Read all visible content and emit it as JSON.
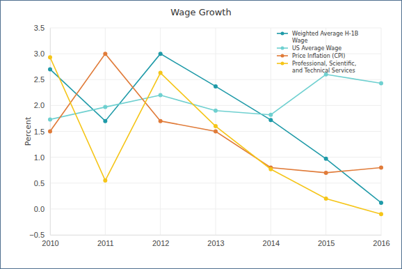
{
  "chart_data": {
    "type": "line",
    "title": "Wage Growth",
    "y_label": "Percent",
    "x": [
      2010,
      2011,
      2012,
      2013,
      2014,
      2015,
      2016
    ],
    "xlim": [
      2010,
      2016
    ],
    "xticks": [
      2010,
      2011,
      2012,
      2013,
      2014,
      2015,
      2016
    ],
    "ylim": [
      -0.5,
      3.5
    ],
    "yticks": [
      {
        "value": -0.5,
        "label": "−0.5"
      },
      {
        "value": 0,
        "label": "0.0"
      },
      {
        "value": 0.5,
        "label": "0.5"
      },
      {
        "value": 1,
        "label": "1.0"
      },
      {
        "value": 1.5,
        "label": "1.5"
      },
      {
        "value": 2,
        "label": "2.0"
      },
      {
        "value": 2.5,
        "label": "2.5"
      },
      {
        "value": 3,
        "label": "3.0"
      },
      {
        "value": 3.5,
        "label": "3.5"
      }
    ],
    "grid": true,
    "legend": "top-right",
    "marker": "circle",
    "series": [
      {
        "name": "Weighted Average H-1B Wage",
        "color": "#1f9aa8",
        "values": [
          2.7,
          1.7,
          3.0,
          2.37,
          1.72,
          0.97,
          0.12
        ]
      },
      {
        "name": "US Average Wage",
        "color": "#6fd0d0",
        "values": [
          1.73,
          1.97,
          2.2,
          1.9,
          1.82,
          2.6,
          2.43
        ]
      },
      {
        "name": "Price Inflation (CPI)",
        "color": "#e07b39",
        "values": [
          1.5,
          3.0,
          1.7,
          1.5,
          0.8,
          0.7,
          0.8
        ]
      },
      {
        "name": "Professional, Scientific, and Technical Services",
        "color": "#f5c518",
        "values": [
          2.93,
          0.55,
          2.63,
          1.6,
          0.77,
          0.2,
          -0.1
        ]
      }
    ]
  }
}
